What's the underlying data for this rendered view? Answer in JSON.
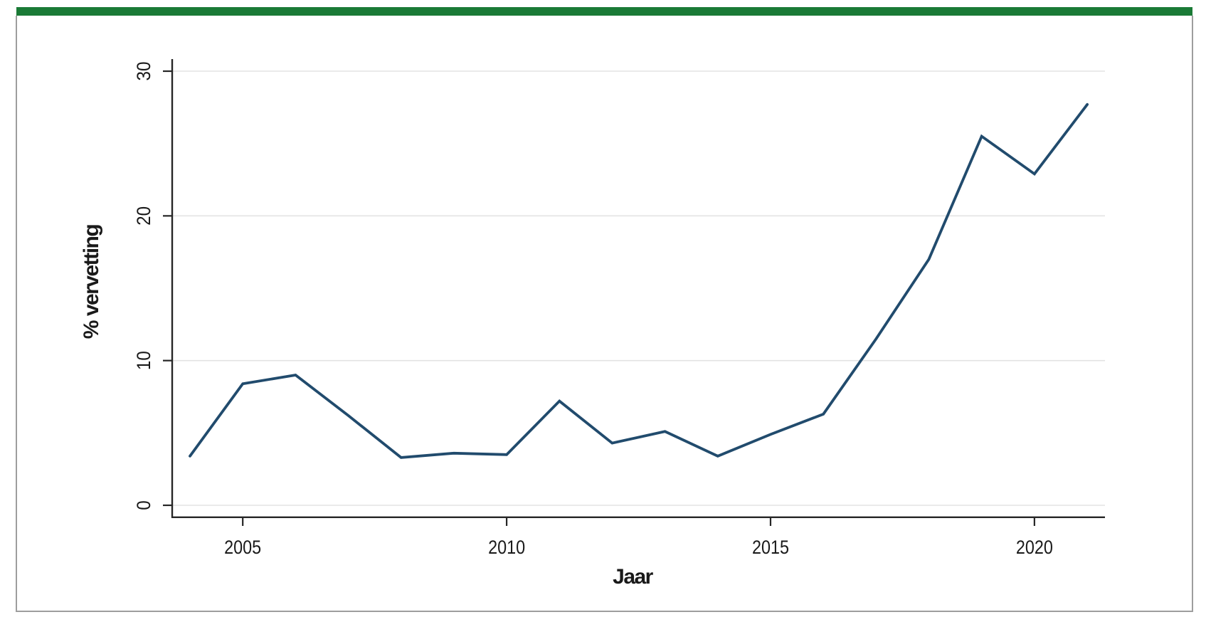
{
  "page": {
    "background_color": "#ffffff",
    "accent_bar_color": "#1a7a36",
    "frame_border_color": "#9e9e9e"
  },
  "chart_data": {
    "type": "line",
    "title": "",
    "xlabel": "Jaar",
    "ylabel": "% vervetting",
    "x": [
      2004,
      2005,
      2006,
      2007,
      2008,
      2009,
      2010,
      2011,
      2012,
      2013,
      2014,
      2015,
      2016,
      2017,
      2018,
      2019,
      2020,
      2021
    ],
    "series": [
      {
        "name": "% vervetting",
        "values": [
          3.4,
          8.4,
          9.0,
          6.2,
          3.3,
          3.6,
          3.5,
          7.2,
          4.3,
          5.1,
          3.4,
          4.9,
          6.3,
          11.5,
          17.0,
          25.5,
          22.9,
          27.7
        ],
        "color": "#214b6d",
        "line_width": 3.8
      }
    ],
    "xticks": [
      2005,
      2010,
      2015,
      2020
    ],
    "yticks": [
      0,
      10,
      20,
      30
    ],
    "xlim": [
      2003.7,
      2021.35
    ],
    "ylim": [
      -0.85,
      30.85
    ],
    "grid": "horizontal",
    "gridline_color": "#e3e3e3",
    "axis_color": "#262626",
    "tick_label_color": "#1a1a1a",
    "legend": "none"
  }
}
